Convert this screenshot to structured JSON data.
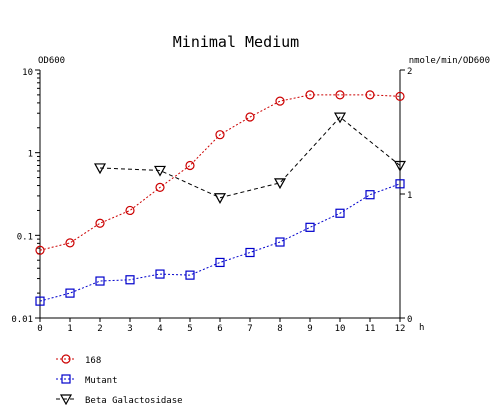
{
  "chart_data": {
    "type": "line",
    "title": "Minimal Medium",
    "xlabel": "h",
    "ylabel_left": "OD600",
    "ylabel_right": "nmole/min/OD600",
    "x_ticks": [
      "0",
      "1",
      "2",
      "3",
      "4",
      "5",
      "6",
      "7",
      "8",
      "9",
      "10",
      "11",
      "12"
    ],
    "xlim": [
      0,
      12
    ],
    "y_left": {
      "scale": "log",
      "lim": [
        0.01,
        10
      ],
      "ticks": [
        "10",
        "1",
        "0.1",
        "0.01"
      ]
    },
    "y_right": {
      "scale": "linear",
      "lim": [
        0,
        2
      ],
      "ticks": [
        "2",
        "1",
        "0"
      ]
    },
    "grid": false,
    "legend_position": "bottom-left",
    "series": [
      {
        "name": "168",
        "axis": "left",
        "marker": "circle",
        "color": "#cc0000",
        "line": "dotted",
        "x": [
          0,
          1,
          2,
          3,
          4,
          5,
          6,
          7,
          8,
          9,
          10,
          11,
          12
        ],
        "y": [
          0.066,
          0.081,
          0.14,
          0.2,
          0.38,
          0.7,
          1.65,
          2.7,
          4.2,
          5.0,
          5.0,
          5.0,
          4.8
        ]
      },
      {
        "name": "Mutant",
        "axis": "left",
        "marker": "square",
        "color": "#0000cc",
        "line": "dotted",
        "x": [
          0,
          1,
          2,
          3,
          4,
          5,
          6,
          7,
          8,
          9,
          10,
          11,
          12
        ],
        "y": [
          0.016,
          0.02,
          0.028,
          0.029,
          0.034,
          0.033,
          0.047,
          0.062,
          0.083,
          0.125,
          0.185,
          0.31,
          0.42
        ]
      },
      {
        "name": "Beta Galactosidase",
        "axis": "right",
        "marker": "triangle-down",
        "color": "#000000",
        "line": "dashed",
        "x": [
          2,
          4,
          6,
          8,
          10,
          12
        ],
        "y": [
          1.21,
          1.19,
          0.97,
          1.09,
          1.62,
          1.23
        ]
      }
    ]
  }
}
